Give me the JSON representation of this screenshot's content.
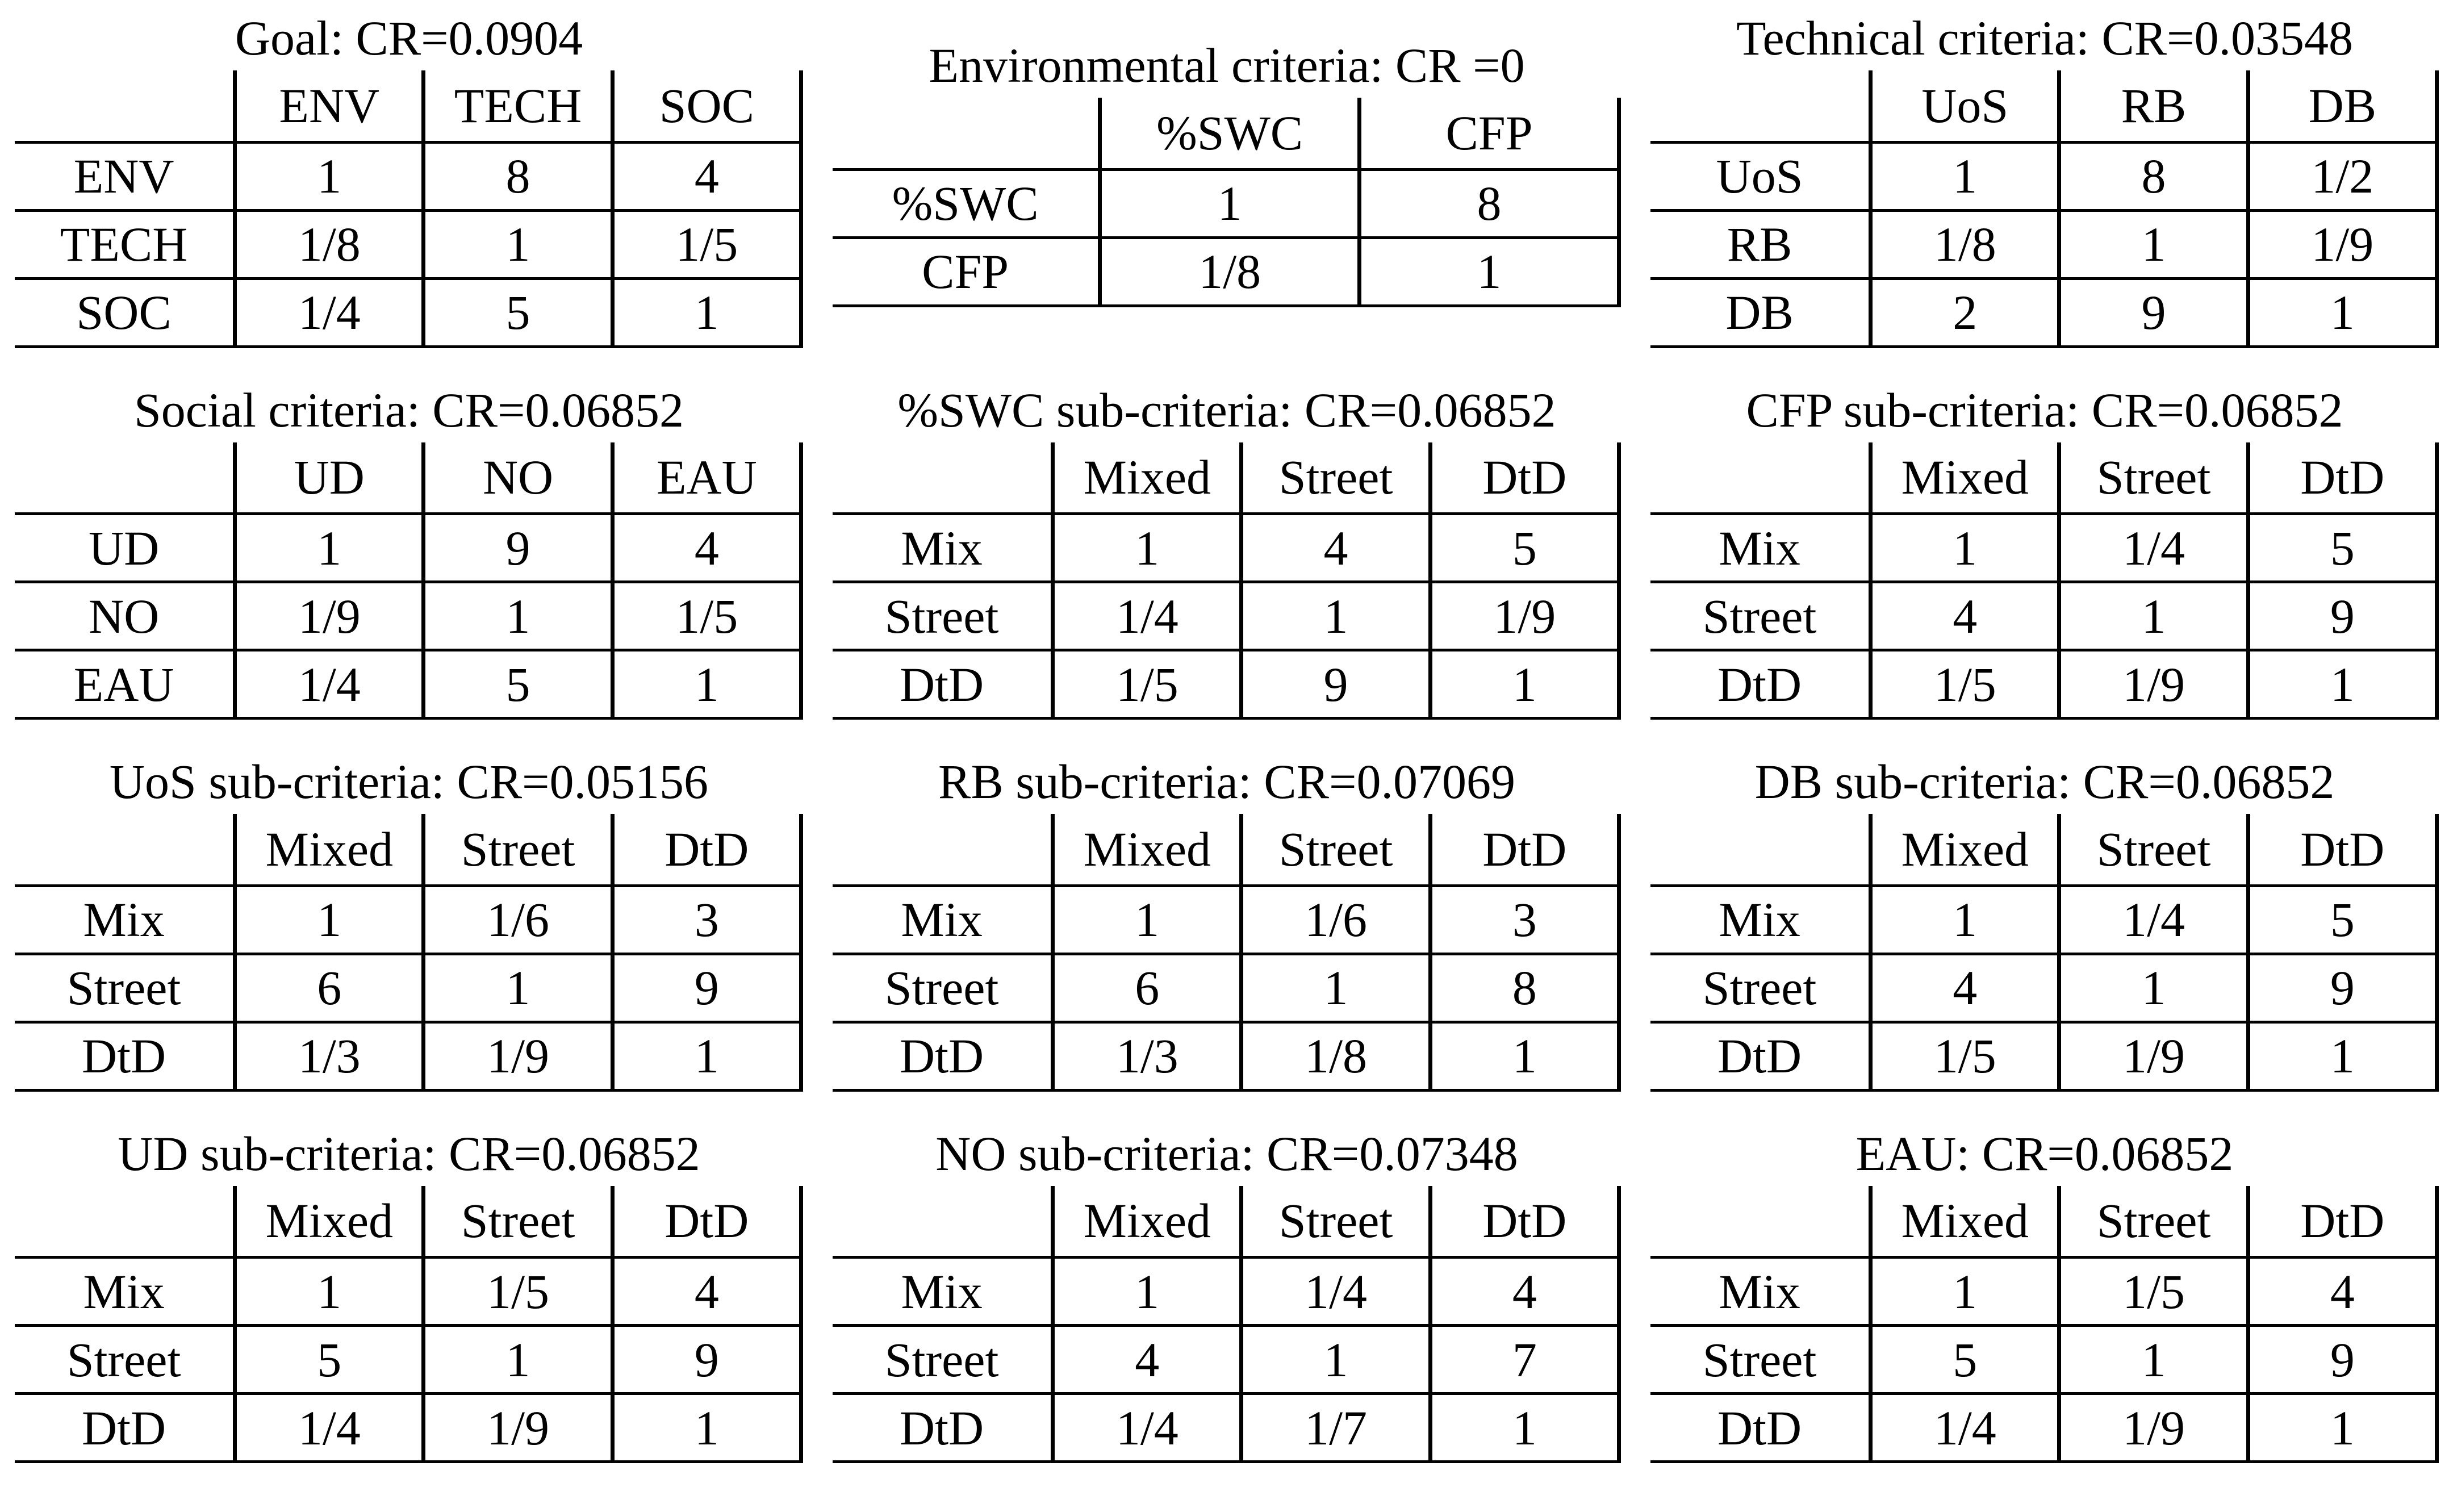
{
  "page": {
    "background": "#ffffff",
    "text_color": "#000000",
    "border_color": "#000000"
  },
  "tables": [
    {
      "id": "goal",
      "title": "Goal: CR=0.0904",
      "col_headers": [
        "ENV",
        "TECH",
        "SOC"
      ],
      "rows": [
        {
          "label": "ENV",
          "values": [
            "1",
            "8",
            "4"
          ]
        },
        {
          "label": "TECH",
          "values": [
            "1/8",
            "1",
            "1/5"
          ]
        },
        {
          "label": "SOC",
          "values": [
            "1/4",
            "5",
            "1"
          ]
        }
      ]
    },
    {
      "id": "environmental",
      "title": "Environmental criteria: CR =0",
      "col_headers": [
        "%SWC",
        "CFP"
      ],
      "rows": [
        {
          "label": "%SWC",
          "values": [
            "1",
            "8"
          ]
        },
        {
          "label": "CFP",
          "values": [
            "1/8",
            "1"
          ]
        }
      ]
    },
    {
      "id": "technical",
      "title": "Technical criteria: CR=0.03548",
      "col_headers": [
        "UoS",
        "RB",
        "DB"
      ],
      "rows": [
        {
          "label": "UoS",
          "values": [
            "1",
            "8",
            "1/2"
          ]
        },
        {
          "label": "RB",
          "values": [
            "1/8",
            "1",
            "1/9"
          ]
        },
        {
          "label": "DB",
          "values": [
            "2",
            "9",
            "1"
          ]
        }
      ]
    },
    {
      "id": "social",
      "title": "Social criteria: CR=0.06852",
      "col_headers": [
        "UD",
        "NO",
        "EAU"
      ],
      "rows": [
        {
          "label": "UD",
          "values": [
            "1",
            "9",
            "4"
          ]
        },
        {
          "label": "NO",
          "values": [
            "1/9",
            "1",
            "1/5"
          ]
        },
        {
          "label": "EAU",
          "values": [
            "1/4",
            "5",
            "1"
          ]
        }
      ]
    },
    {
      "id": "swc",
      "title": "%SWC sub-criteria: CR=0.06852",
      "col_headers": [
        "Mixed",
        "Street",
        "DtD"
      ],
      "rows": [
        {
          "label": "Mix",
          "values": [
            "1",
            "4",
            "5"
          ]
        },
        {
          "label": "Street",
          "values": [
            "1/4",
            "1",
            "1/9"
          ]
        },
        {
          "label": "DtD",
          "values": [
            "1/5",
            "9",
            "1"
          ]
        }
      ]
    },
    {
      "id": "cfp",
      "title": "CFP sub-criteria: CR=0.06852",
      "col_headers": [
        "Mixed",
        "Street",
        "DtD"
      ],
      "rows": [
        {
          "label": "Mix",
          "values": [
            "1",
            "1/4",
            "5"
          ]
        },
        {
          "label": "Street",
          "values": [
            "4",
            "1",
            "9"
          ]
        },
        {
          "label": "DtD",
          "values": [
            "1/5",
            "1/9",
            "1"
          ]
        }
      ]
    },
    {
      "id": "uos",
      "title": "UoS sub-criteria: CR=0.05156",
      "col_headers": [
        "Mixed",
        "Street",
        "DtD"
      ],
      "rows": [
        {
          "label": "Mix",
          "values": [
            "1",
            "1/6",
            "3"
          ]
        },
        {
          "label": "Street",
          "values": [
            "6",
            "1",
            "9"
          ]
        },
        {
          "label": "DtD",
          "values": [
            "1/3",
            "1/9",
            "1"
          ]
        }
      ]
    },
    {
      "id": "rb",
      "title": "RB sub-criteria: CR=0.07069",
      "col_headers": [
        "Mixed",
        "Street",
        "DtD"
      ],
      "rows": [
        {
          "label": "Mix",
          "values": [
            "1",
            "1/6",
            "3"
          ]
        },
        {
          "label": "Street",
          "values": [
            "6",
            "1",
            "8"
          ]
        },
        {
          "label": "DtD",
          "values": [
            "1/3",
            "1/8",
            "1"
          ]
        }
      ]
    },
    {
      "id": "db",
      "title": "DB sub-criteria: CR=0.06852",
      "col_headers": [
        "Mixed",
        "Street",
        "DtD"
      ],
      "rows": [
        {
          "label": "Mix",
          "values": [
            "1",
            "1/4",
            "5"
          ]
        },
        {
          "label": "Street",
          "values": [
            "4",
            "1",
            "9"
          ]
        },
        {
          "label": "DtD",
          "values": [
            "1/5",
            "1/9",
            "1"
          ]
        }
      ]
    },
    {
      "id": "ud",
      "title": "UD sub-criteria: CR=0.06852",
      "col_headers": [
        "Mixed",
        "Street",
        "DtD"
      ],
      "rows": [
        {
          "label": "Mix",
          "values": [
            "1",
            "1/5",
            "4"
          ]
        },
        {
          "label": "Street",
          "values": [
            "5",
            "1",
            "9"
          ]
        },
        {
          "label": "DtD",
          "values": [
            "1/4",
            "1/9",
            "1"
          ]
        }
      ]
    },
    {
      "id": "no",
      "title": "NO sub-criteria: CR=0.07348",
      "col_headers": [
        "Mixed",
        "Street",
        "DtD"
      ],
      "rows": [
        {
          "label": "Mix",
          "values": [
            "1",
            "1/4",
            "4"
          ]
        },
        {
          "label": "Street",
          "values": [
            "4",
            "1",
            "7"
          ]
        },
        {
          "label": "DtD",
          "values": [
            "1/4",
            "1/7",
            "1"
          ]
        }
      ]
    },
    {
      "id": "eau",
      "title": "EAU: CR=0.06852",
      "col_headers": [
        "Mixed",
        "Street",
        "DtD"
      ],
      "rows": [
        {
          "label": "Mix",
          "values": [
            "1",
            "1/5",
            "4"
          ]
        },
        {
          "label": "Street",
          "values": [
            "5",
            "1",
            "9"
          ]
        },
        {
          "label": "DtD",
          "values": [
            "1/4",
            "1/9",
            "1"
          ]
        }
      ]
    }
  ]
}
